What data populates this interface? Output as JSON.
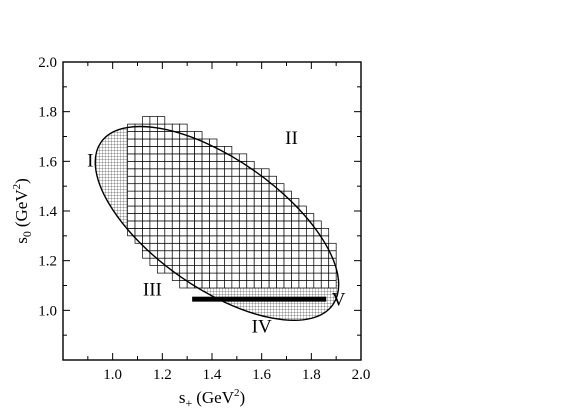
{
  "chart_data": {
    "type": "scatter",
    "title": "",
    "xlabel": "s",
    "xlabel_sub": "+",
    "xlabel_unit": "(GeV",
    "xlabel_unit_sup": "2",
    "xlabel_unit_close": ")",
    "ylabel": "s",
    "ylabel_sub": "0",
    "ylabel_unit": "(GeV",
    "ylabel_unit_sup": "2",
    "ylabel_unit_close": ")",
    "xlim": [
      0.8,
      2.0
    ],
    "ylim": [
      0.8,
      2.0
    ],
    "xticks": [
      "1.0",
      "1.2",
      "1.4",
      "1.6",
      "1.8",
      "2.0"
    ],
    "yticks": [
      "1.0",
      "1.2",
      "1.4",
      "1.6",
      "1.8",
      "2.0"
    ],
    "grid": false,
    "ellipse": {
      "center": [
        1.42,
        1.35
      ],
      "semi_major": 0.57,
      "semi_minor": 0.26,
      "angle_deg": -35
    },
    "region_II_grid": {
      "x_range": [
        1.0,
        1.9
      ],
      "y_range": [
        1.09,
        1.9
      ],
      "cell_size": 0.03
    },
    "regions": [
      {
        "label": "I",
        "x": 0.91,
        "y": 1.58
      },
      {
        "label": "II",
        "x": 1.72,
        "y": 1.67
      },
      {
        "label": "III",
        "x": 1.16,
        "y": 1.06
      },
      {
        "label": "IV",
        "x": 1.6,
        "y": 0.91
      },
      {
        "label": "V",
        "x": 1.91,
        "y": 1.02
      }
    ],
    "region_V_band": {
      "x_range": [
        1.32,
        1.86
      ],
      "y_range": [
        1.035,
        1.055
      ]
    }
  }
}
